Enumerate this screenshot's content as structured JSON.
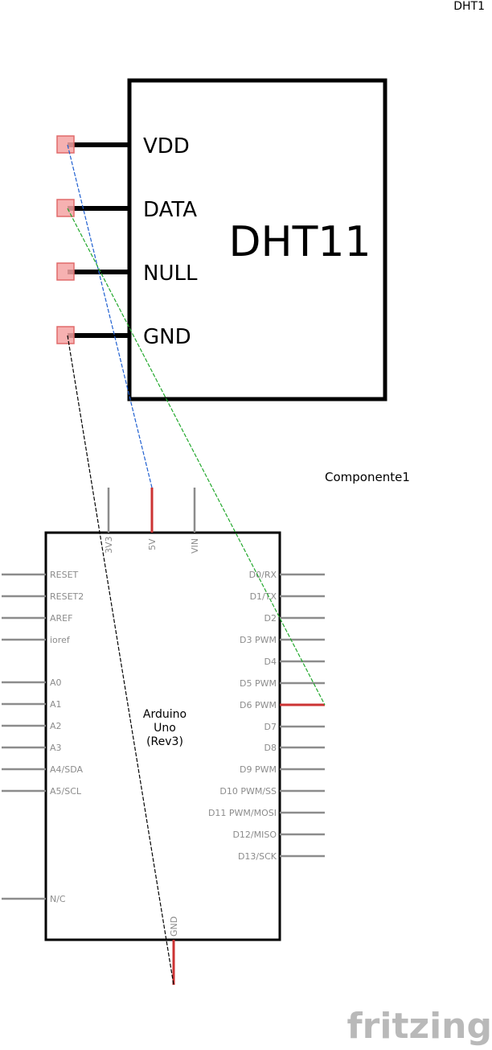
{
  "dht": {
    "part_label": "DHT1",
    "title": "DHT11",
    "pins": [
      "VDD",
      "DATA",
      "NULL",
      "GND"
    ]
  },
  "arduino": {
    "part_label": "Componente1",
    "title_lines": [
      "Arduino",
      "Uno",
      "(Rev3)"
    ],
    "top_pins": [
      "3V3",
      "5V",
      "VIN"
    ],
    "bottom_pin": "GND",
    "left_pins": [
      "RESET",
      "RESET2",
      "AREF",
      "ioref",
      "A0",
      "A1",
      "A2",
      "A3",
      "A4/SDA",
      "A5/SCL",
      "N/C"
    ],
    "right_pins": [
      "D0/RX",
      "D1/TX",
      "D2",
      "D3 PWM",
      "D4",
      "D5 PWM",
      "D6 PWM",
      "D7",
      "D8",
      "D9 PWM",
      "D10 PWM/SS",
      "D11 PWM/MOSI",
      "D12/MISO",
      "D13/SCK"
    ]
  },
  "brand": {
    "logo_text": "fritzing"
  },
  "colors": {
    "wire_vdd": "#1f5fd0",
    "wire_data": "#22a82c",
    "wire_gnd": "#000000",
    "pin_active": "#cc3333",
    "pin_inactive": "#8c8c8c",
    "connector_fill": "#f4a3a3",
    "connector_stroke": "#e06a6a",
    "logo": "#b9b9b9"
  }
}
